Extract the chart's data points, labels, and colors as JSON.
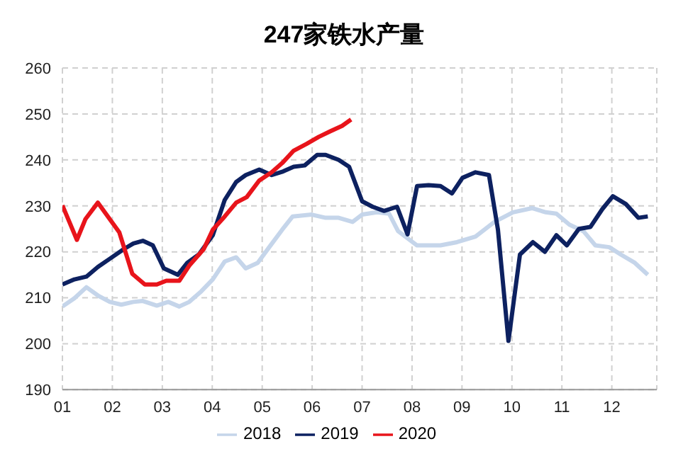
{
  "chart_data": {
    "type": "line",
    "title": "247家铁水产量",
    "xlim": [
      1,
      12.9
    ],
    "xticks": [
      {
        "value": 1,
        "label": "01"
      },
      {
        "value": 2,
        "label": "02"
      },
      {
        "value": 3,
        "label": "03"
      },
      {
        "value": 4,
        "label": "04"
      },
      {
        "value": 5,
        "label": "05"
      },
      {
        "value": 6,
        "label": "06"
      },
      {
        "value": 7,
        "label": "07"
      },
      {
        "value": 8,
        "label": "08"
      },
      {
        "value": 9,
        "label": "09"
      },
      {
        "value": 10,
        "label": "10"
      },
      {
        "value": 11,
        "label": "11"
      },
      {
        "value": 12,
        "label": "12"
      }
    ],
    "ylim": [
      190,
      260
    ],
    "yticks": [
      190,
      200,
      210,
      220,
      230,
      240,
      250,
      260
    ],
    "grid": true,
    "legend": "bottom",
    "marker": "none",
    "line_style": "solid",
    "series": [
      {
        "name": "2018",
        "color": "#c5d5ea",
        "x": [
          1.0,
          1.24,
          1.48,
          1.71,
          1.95,
          2.18,
          2.42,
          2.61,
          2.89,
          3.12,
          3.34,
          3.54,
          3.78,
          4.01,
          4.25,
          4.48,
          4.67,
          4.91,
          5.14,
          5.4,
          5.61,
          5.99,
          6.27,
          6.53,
          6.81,
          7.0,
          7.3,
          7.54,
          7.72,
          8.1,
          8.57,
          8.9,
          9.27,
          9.65,
          10.02,
          10.4,
          10.68,
          10.89,
          11.15,
          11.43,
          11.67,
          11.95,
          12.18,
          12.46,
          12.72
        ],
        "values": [
          208.1,
          209.9,
          212.3,
          210.5,
          209.1,
          208.5,
          209.1,
          209.3,
          208.3,
          209.1,
          208.1,
          209.1,
          211.4,
          214.0,
          217.9,
          218.8,
          216.4,
          217.6,
          221.0,
          224.8,
          227.7,
          228.1,
          227.4,
          227.4,
          226.5,
          228.1,
          228.6,
          228.3,
          224.5,
          221.4,
          221.4,
          222.1,
          223.3,
          226.5,
          228.6,
          229.5,
          228.6,
          228.3,
          225.9,
          224.5,
          221.4,
          221.0,
          219.4,
          217.6,
          215.0
        ]
      },
      {
        "name": "2019",
        "color": "#0d2160",
        "x": [
          1.0,
          1.24,
          1.48,
          1.71,
          1.95,
          2.23,
          2.42,
          2.61,
          2.81,
          3.03,
          3.31,
          3.5,
          3.73,
          4.01,
          4.25,
          4.48,
          4.67,
          4.94,
          5.19,
          5.42,
          5.63,
          5.85,
          6.1,
          6.27,
          6.53,
          6.74,
          7.0,
          7.21,
          7.44,
          7.7,
          7.91,
          8.1,
          8.33,
          8.57,
          8.8,
          9.01,
          9.27,
          9.54,
          9.72,
          9.93,
          10.16,
          10.42,
          10.66,
          10.89,
          11.1,
          11.34,
          11.57,
          11.81,
          12.02,
          12.28,
          12.53,
          12.72
        ],
        "values": [
          212.9,
          214.0,
          214.6,
          216.7,
          218.5,
          220.6,
          221.8,
          222.4,
          221.4,
          216.4,
          215.0,
          217.6,
          219.4,
          223.6,
          231.3,
          235.2,
          236.7,
          237.9,
          236.7,
          237.5,
          238.5,
          238.8,
          241.1,
          241.1,
          240.0,
          238.5,
          231.0,
          229.8,
          228.9,
          229.8,
          223.8,
          234.3,
          234.5,
          234.3,
          232.7,
          236.1,
          237.3,
          236.7,
          224.8,
          200.6,
          219.4,
          222.1,
          220.0,
          223.6,
          221.4,
          225.0,
          225.4,
          229.3,
          232.1,
          230.4,
          227.4,
          227.7
        ]
      },
      {
        "name": "2020",
        "color": "#e8141b",
        "x": [
          1.0,
          1.29,
          1.46,
          1.71,
          2.14,
          2.4,
          2.65,
          2.89,
          3.08,
          3.34,
          3.54,
          3.83,
          4.01,
          4.25,
          4.48,
          4.69,
          4.94,
          5.19,
          5.4,
          5.63,
          5.89,
          6.13,
          6.36,
          6.6,
          6.78
        ],
        "values": [
          230.1,
          222.6,
          227.1,
          230.7,
          224.2,
          215.2,
          212.9,
          212.9,
          213.7,
          213.7,
          217.0,
          220.6,
          224.8,
          227.7,
          230.7,
          231.9,
          235.5,
          237.3,
          239.3,
          242.0,
          243.5,
          245.0,
          246.2,
          247.4,
          248.8
        ]
      }
    ]
  }
}
